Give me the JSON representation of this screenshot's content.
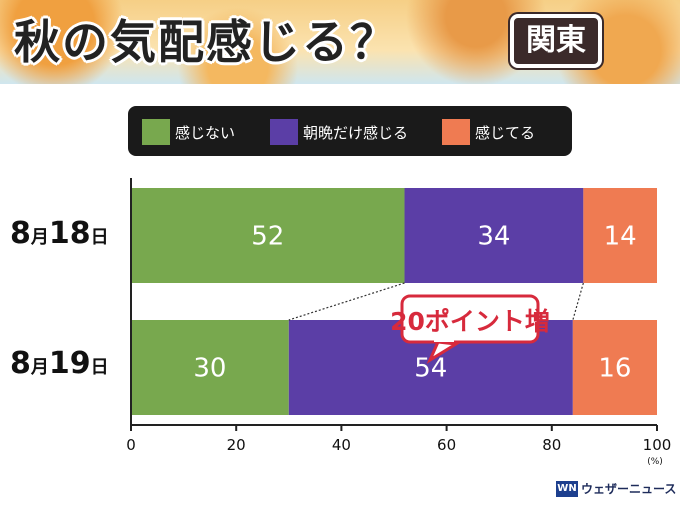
{
  "header": {
    "title": "秋の気配感じる？",
    "region": "関東"
  },
  "legend": [
    {
      "label": "感じない",
      "color": "#78a84e"
    },
    {
      "label": "朝晩だけ感じる",
      "color": "#5b3ea6"
    },
    {
      "label": "感じてる",
      "color": "#ef7b52"
    }
  ],
  "chart_data": {
    "type": "bar",
    "orientation": "horizontal",
    "stacked": true,
    "categories": [
      "8月18日",
      "8月19日"
    ],
    "series": [
      {
        "name": "感じない",
        "values": [
          52,
          30
        ]
      },
      {
        "name": "朝晩だけ感じる",
        "values": [
          34,
          54
        ]
      },
      {
        "name": "感じてる",
        "values": [
          14,
          16
        ]
      }
    ],
    "xlim": [
      0,
      100
    ],
    "xticks": [
      0,
      20,
      40,
      60,
      80,
      100
    ],
    "xunit": "(%)",
    "grid": false,
    "annotation": "20ポイント増"
  },
  "brand": {
    "mark": "WN",
    "name": "ウェザーニュース"
  }
}
